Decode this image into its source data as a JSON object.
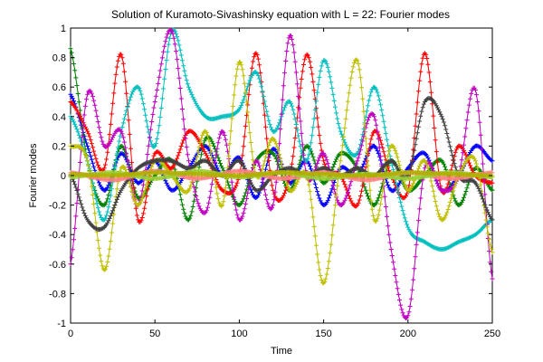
{
  "chart_data": {
    "type": "line",
    "title": "Solution of Kuramoto-Sivashinsky equation with L = 22: Fourier modes",
    "xlabel": "Time",
    "ylabel": "Fourier modes",
    "xlim": [
      0,
      250
    ],
    "ylim": [
      -1,
      1
    ],
    "grid": false,
    "marker": "+",
    "xticks": [
      0,
      50,
      100,
      150,
      200,
      250
    ],
    "xtick_labels": [
      "0",
      "50",
      "100",
      "150",
      "200",
      "250"
    ],
    "yticks": [
      -1,
      -0.8,
      -0.6,
      -0.4,
      -0.2,
      0,
      0.2,
      0.4,
      0.6,
      0.8,
      1
    ],
    "ytick_labels": [
      "-1",
      "-0.8",
      "-0.6",
      "-0.4",
      "-0.2",
      "0",
      "0.2",
      "0.4",
      "0.6",
      "0.8",
      "1"
    ],
    "series": [
      {
        "color": "#0000ff",
        "x": [
          0,
          10,
          20,
          30,
          40,
          50,
          60,
          70,
          80,
          90,
          100,
          110,
          120,
          130,
          140,
          150,
          160,
          170,
          180,
          190,
          200,
          210,
          220,
          230,
          240,
          250
        ],
        "values": [
          0.55,
          0.2,
          -0.1,
          0.15,
          -0.05,
          0.1,
          -0.1,
          0.05,
          0.2,
          0.0,
          0.12,
          -0.15,
          0.18,
          -0.05,
          0.1,
          -0.2,
          0.05,
          0.0,
          0.2,
          -0.1,
          0.05,
          0.15,
          -0.1,
          0.0,
          0.2,
          0.1
        ]
      },
      {
        "color": "#008000",
        "x": [
          0,
          10,
          20,
          30,
          40,
          50,
          60,
          70,
          80,
          90,
          100,
          110,
          120,
          130,
          140,
          150,
          160,
          170,
          180,
          190,
          200,
          210,
          220,
          230,
          240,
          250
        ],
        "values": [
          0.86,
          0.1,
          -0.2,
          0.2,
          -0.15,
          0.0,
          0.1,
          -0.3,
          0.25,
          0.05,
          -0.2,
          0.1,
          0.15,
          -0.1,
          0.2,
          -0.05,
          0.15,
          0.05,
          -0.2,
          0.1,
          -0.1,
          0.0,
          0.1,
          -0.2,
          0.05,
          -0.1
        ]
      },
      {
        "color": "#ff0000",
        "x": [
          0,
          10,
          20,
          30,
          40,
          50,
          60,
          70,
          80,
          90,
          100,
          110,
          120,
          130,
          140,
          150,
          160,
          170,
          180,
          190,
          200,
          210,
          220,
          230,
          240,
          250
        ],
        "values": [
          0.5,
          0.3,
          0.05,
          0.82,
          -0.3,
          0.15,
          0.05,
          0.3,
          0.15,
          -0.1,
          0.0,
          0.83,
          -0.1,
          0.0,
          0.82,
          0.1,
          0.0,
          -0.2,
          0.3,
          0.0,
          -0.1,
          0.83,
          -0.1,
          0.2,
          0.0,
          -0.05
        ]
      },
      {
        "color": "#00bfbf",
        "x": [
          0,
          10,
          20,
          30,
          40,
          50,
          60,
          70,
          80,
          90,
          100,
          110,
          120,
          130,
          140,
          150,
          160,
          170,
          180,
          190,
          200,
          210,
          220,
          230,
          240,
          250
        ],
        "values": [
          0.4,
          0.1,
          -0.3,
          0.3,
          0.6,
          0.2,
          0.98,
          0.6,
          0.4,
          0.4,
          0.45,
          0.7,
          0.3,
          0.5,
          0.1,
          0.78,
          0.3,
          0.15,
          0.6,
          0.1,
          -0.35,
          -0.45,
          -0.5,
          -0.45,
          -0.4,
          -0.3
        ]
      },
      {
        "color": "#bf00bf",
        "x": [
          0,
          10,
          20,
          30,
          40,
          50,
          60,
          70,
          80,
          90,
          100,
          110,
          120,
          130,
          140,
          150,
          160,
          170,
          180,
          190,
          200,
          210,
          220,
          230,
          240,
          250
        ],
        "values": [
          -0.6,
          0.55,
          0.2,
          0.3,
          -0.2,
          0.5,
          0.98,
          0.1,
          -0.25,
          0.3,
          -0.3,
          0.1,
          -0.2,
          0.95,
          0.0,
          0.15,
          -0.2,
          0.1,
          0.4,
          -0.5,
          -0.95,
          0.05,
          -0.1,
          0.0,
          0.58,
          -0.7
        ]
      },
      {
        "color": "#bfbf00",
        "x": [
          0,
          10,
          20,
          30,
          40,
          50,
          60,
          70,
          80,
          90,
          100,
          110,
          120,
          130,
          140,
          150,
          160,
          170,
          180,
          190,
          200,
          210,
          220,
          230,
          240,
          250
        ],
        "values": [
          0.2,
          0.1,
          -0.64,
          0.05,
          -0.2,
          0.1,
          0.0,
          -0.1,
          0.3,
          -0.2,
          0.77,
          0.0,
          0.25,
          -0.1,
          0.0,
          -0.73,
          0.1,
          0.78,
          -0.3,
          0.2,
          -0.1,
          0.1,
          -0.3,
          0.0,
          0.1,
          -0.52
        ]
      },
      {
        "color": "#404040",
        "x": [
          0,
          10,
          20,
          30,
          40,
          50,
          60,
          70,
          80,
          90,
          100,
          110,
          120,
          130,
          140,
          150,
          160,
          170,
          180,
          190,
          200,
          210,
          220,
          230,
          240,
          250
        ],
        "values": [
          0.0,
          -0.3,
          -0.35,
          -0.1,
          0.05,
          0.1,
          0.1,
          0.05,
          0.1,
          0.0,
          0.1,
          -0.1,
          0.0,
          0.05,
          0.0,
          0.05,
          0.0,
          0.05,
          0.0,
          0.1,
          0.0,
          0.5,
          0.4,
          0.0,
          -0.05,
          -0.3
        ]
      },
      {
        "color": "#ff8080",
        "x": [
          0,
          25,
          50,
          75,
          100,
          125,
          150,
          175,
          200,
          225,
          250
        ],
        "values": [
          0.02,
          -0.03,
          0.03,
          -0.02,
          0.03,
          -0.02,
          0.02,
          -0.03,
          0.02,
          -0.02,
          0.02
        ]
      },
      {
        "color": "#9acd32",
        "x": [
          0,
          25,
          50,
          75,
          100,
          125,
          150,
          175,
          200,
          225,
          250
        ],
        "values": [
          -0.01,
          0.02,
          -0.02,
          0.03,
          -0.01,
          0.02,
          -0.02,
          0.01,
          -0.02,
          0.02,
          -0.01
        ]
      },
      {
        "color": "#b0b000",
        "x": [
          0,
          25,
          50,
          75,
          100,
          125,
          150,
          175,
          200,
          225,
          250
        ],
        "values": [
          0.01,
          0.0,
          0.02,
          0.01,
          0.0,
          0.02,
          0.01,
          0.0,
          0.02,
          0.01,
          0.0
        ]
      }
    ]
  }
}
